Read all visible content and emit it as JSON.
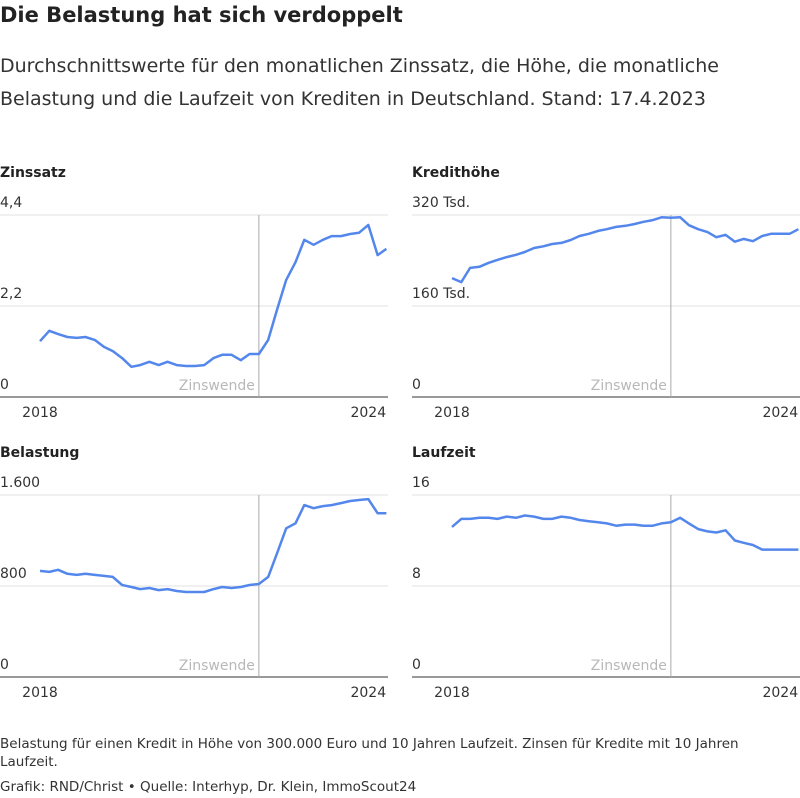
{
  "title": "Die Belastung hat sich verdoppelt",
  "subtitle": "Durchschnittswerte für den monatlichen Zinssatz, die Höhe, die monatliche Belastung und die Laufzeit von Krediten in Deutschland. Stand: 17.4.2023",
  "note": "Belastung für einen Kredit in Höhe von 300.000 Euro und 10 Jahren Laufzeit. Zinsen für Kredite mit 10 Jahren Laufzeit.",
  "source": "Grafik: RND/Christ • Quelle: Interhyp, Dr. Klein, ImmoScout24",
  "chart_data": [
    {
      "type": "line",
      "title": "Zinssatz",
      "x": [
        2018,
        2018.17,
        2018.33,
        2018.5,
        2018.67,
        2018.83,
        2019,
        2019.17,
        2019.33,
        2019.5,
        2019.67,
        2019.83,
        2020,
        2020.17,
        2020.33,
        2020.5,
        2020.67,
        2020.83,
        2021,
        2021.17,
        2021.33,
        2021.5,
        2021.67,
        2021.83,
        2022,
        2022.17,
        2022.33,
        2022.5,
        2022.67,
        2022.83,
        2023,
        2023.17,
        2023.33,
        2023.5,
        2023.67,
        2023.83,
        2024,
        2024.17,
        2024.33
      ],
      "series": [
        {
          "name": "Zinssatz",
          "color": "#5487ec",
          "values": [
            1.35,
            1.6,
            1.52,
            1.45,
            1.43,
            1.45,
            1.38,
            1.21,
            1.11,
            0.94,
            0.73,
            0.77,
            0.85,
            0.77,
            0.85,
            0.77,
            0.75,
            0.75,
            0.77,
            0.94,
            1.02,
            1.02,
            0.89,
            1.04,
            1.04,
            1.38,
            2.1,
            2.83,
            3.26,
            3.8,
            3.68,
            3.8,
            3.89,
            3.89,
            3.94,
            3.97,
            4.16,
            3.43,
            3.58
          ]
        }
      ],
      "xlim": [
        2018,
        2024.36
      ],
      "xticks": [
        2018,
        2024
      ],
      "ylim": [
        0,
        4.4
      ],
      "yticks": [
        0,
        {
          "value": 2.2,
          "label": "2,2"
        },
        {
          "value": 4.4,
          "label": "4,4"
        }
      ],
      "marker": {
        "x": 2022,
        "label": "Zinswende"
      },
      "grid": true
    },
    {
      "type": "line",
      "title": "Kredithöhe",
      "x": [
        2018,
        2018.17,
        2018.33,
        2018.5,
        2018.67,
        2018.83,
        2019,
        2019.17,
        2019.33,
        2019.5,
        2019.67,
        2019.83,
        2020,
        2020.17,
        2020.33,
        2020.5,
        2020.67,
        2020.83,
        2021,
        2021.17,
        2021.33,
        2021.5,
        2021.67,
        2021.83,
        2022,
        2022.17,
        2022.33,
        2022.5,
        2022.67,
        2022.83,
        2023,
        2023.17,
        2023.33,
        2023.5,
        2023.67,
        2023.83,
        2024,
        2024.17,
        2024.33
      ],
      "series": [
        {
          "name": "Kredithöhe",
          "color": "#5487ec",
          "values": [
            209,
            202,
            227,
            229,
            236,
            241,
            246,
            250,
            255,
            262,
            265,
            269,
            271,
            276,
            283,
            287,
            292,
            295,
            299,
            301,
            304,
            308,
            311,
            316,
            315,
            316,
            302,
            295,
            290,
            281,
            285,
            273,
            278,
            274,
            283,
            287,
            287,
            287,
            295
          ]
        }
      ],
      "xlim": [
        2018,
        2024.36
      ],
      "xticks": [
        2018,
        2024
      ],
      "ylim": [
        0,
        320
      ],
      "yticks": [
        0,
        {
          "value": 160,
          "label": "160 Tsd."
        },
        {
          "value": 320,
          "label": "320 Tsd."
        }
      ],
      "marker": {
        "x": 2022,
        "label": "Zinswende"
      },
      "grid": true
    },
    {
      "type": "line",
      "title": "Belastung",
      "x": [
        2018,
        2018.17,
        2018.33,
        2018.5,
        2018.67,
        2018.83,
        2019,
        2019.17,
        2019.33,
        2019.5,
        2019.67,
        2019.83,
        2020,
        2020.17,
        2020.33,
        2020.5,
        2020.67,
        2020.83,
        2021,
        2021.17,
        2021.33,
        2021.5,
        2021.67,
        2021.83,
        2022,
        2022.17,
        2022.33,
        2022.5,
        2022.67,
        2022.83,
        2023,
        2023.17,
        2023.33,
        2023.5,
        2023.67,
        2023.83,
        2024,
        2024.17,
        2024.33
      ],
      "series": [
        {
          "name": "Belastung",
          "color": "#5487ec",
          "values": [
            933,
            924,
            942,
            907,
            898,
            907,
            898,
            889,
            880,
            809,
            791,
            773,
            782,
            764,
            773,
            756,
            747,
            747,
            747,
            773,
            791,
            782,
            791,
            809,
            818,
            880,
            1084,
            1307,
            1351,
            1511,
            1484,
            1502,
            1511,
            1529,
            1547,
            1556,
            1564,
            1440,
            1440
          ]
        }
      ],
      "xlim": [
        2018,
        2024.36
      ],
      "xticks": [
        2018,
        2024
      ],
      "ylim": [
        0,
        1600
      ],
      "yticks": [
        0,
        800,
        {
          "value": 1600,
          "label": "1.600"
        }
      ],
      "marker": {
        "x": 2022,
        "label": "Zinswende"
      },
      "grid": true
    },
    {
      "type": "line",
      "title": "Laufzeit",
      "x": [
        2018,
        2018.17,
        2018.33,
        2018.5,
        2018.67,
        2018.83,
        2019,
        2019.17,
        2019.33,
        2019.5,
        2019.67,
        2019.83,
        2020,
        2020.17,
        2020.33,
        2020.5,
        2020.67,
        2020.83,
        2021,
        2021.17,
        2021.33,
        2021.5,
        2021.67,
        2021.83,
        2022,
        2022.17,
        2022.33,
        2022.5,
        2022.67,
        2022.83,
        2023,
        2023.17,
        2023.33,
        2023.5,
        2023.67,
        2023.83,
        2024,
        2024.17,
        2024.33
      ],
      "series": [
        {
          "name": "Laufzeit",
          "color": "#5487ec",
          "values": [
            13.2,
            13.9,
            13.9,
            14,
            14,
            13.9,
            14.1,
            14,
            14.2,
            14.1,
            13.9,
            13.9,
            14.1,
            14,
            13.8,
            13.7,
            13.6,
            13.5,
            13.3,
            13.4,
            13.4,
            13.3,
            13.3,
            13.5,
            13.6,
            14,
            13.5,
            13,
            12.8,
            12.7,
            12.9,
            12,
            11.8,
            11.6,
            11.2,
            11.2,
            11.2,
            11.2,
            11.2
          ]
        }
      ],
      "xlim": [
        2018,
        2024.36
      ],
      "xticks": [
        2018,
        2024
      ],
      "ylim": [
        0,
        16
      ],
      "yticks": [
        0,
        8,
        16
      ],
      "marker": {
        "x": 2022,
        "label": "Zinswende"
      },
      "grid": true
    }
  ]
}
